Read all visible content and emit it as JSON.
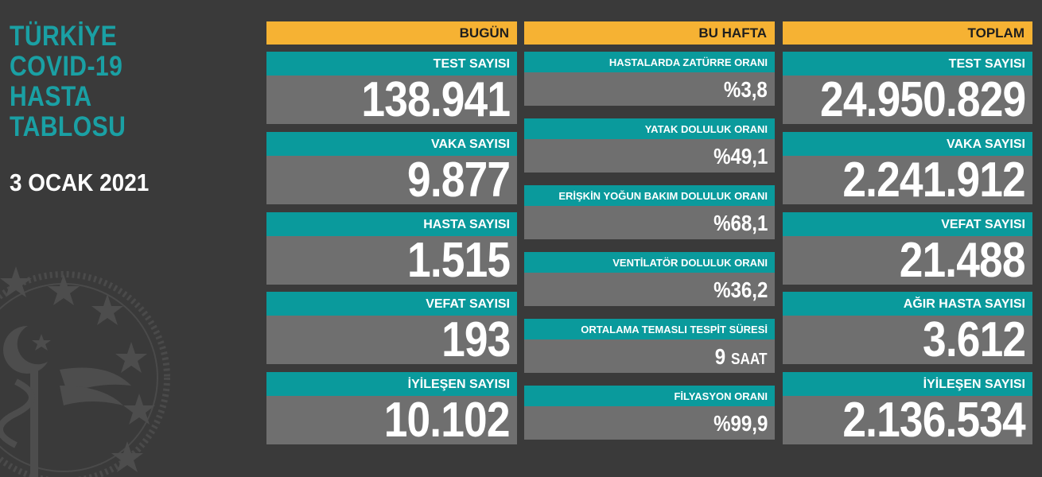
{
  "sidebar": {
    "title_lines": [
      "TÜRKİYE",
      "COVID-19",
      "HASTA",
      "TABLOSU"
    ],
    "date": "3 OCAK 2021"
  },
  "today": {
    "header": "BUGÜN",
    "cards": [
      {
        "label": "TEST SAYISI",
        "value": "138.941"
      },
      {
        "label": "VAKA SAYISI",
        "value": "9.877"
      },
      {
        "label": "HASTA SAYISI",
        "value": "1.515"
      },
      {
        "label": "VEFAT SAYISI",
        "value": "193"
      },
      {
        "label": "İYİLEŞEN SAYISI",
        "value": "10.102"
      }
    ]
  },
  "week": {
    "header": "BU HAFTA",
    "cards": [
      {
        "label": "HASTALARDA ZATÜRRE ORANI",
        "value": "%3,8"
      },
      {
        "label": "YATAK DOLULUK ORANI",
        "value": "%49,1"
      },
      {
        "label": "ERİŞKİN YOĞUN BAKIM DOLULUK ORANI",
        "value": "%68,1"
      },
      {
        "label": "VENTİLATÖR DOLULUK ORANI",
        "value": "%36,2"
      },
      {
        "label": "ORTALAMA TEMASLI TESPİT SÜRESİ",
        "value": "9",
        "unit": "SAAT"
      },
      {
        "label": "FİLYASYON ORANI",
        "value": "%99,9"
      }
    ]
  },
  "total": {
    "header": "TOPLAM",
    "cards": [
      {
        "label": "TEST SAYISI",
        "value": "24.950.829"
      },
      {
        "label": "VAKA SAYISI",
        "value": "2.241.912"
      },
      {
        "label": "VEFAT SAYISI",
        "value": "21.488"
      },
      {
        "label": "AĞIR HASTA SAYISI",
        "value": "3.612"
      },
      {
        "label": "İYİLEŞEN SAYISI",
        "value": "2.136.534"
      }
    ]
  },
  "colors": {
    "background": "#3a3a3a",
    "header": "#f6b233",
    "label": "#0a9a9c",
    "value_box": "#6f6f6f",
    "title": "#1aa0a4"
  },
  "icons": {
    "emblem": "ministry-of-health-emblem-icon"
  }
}
